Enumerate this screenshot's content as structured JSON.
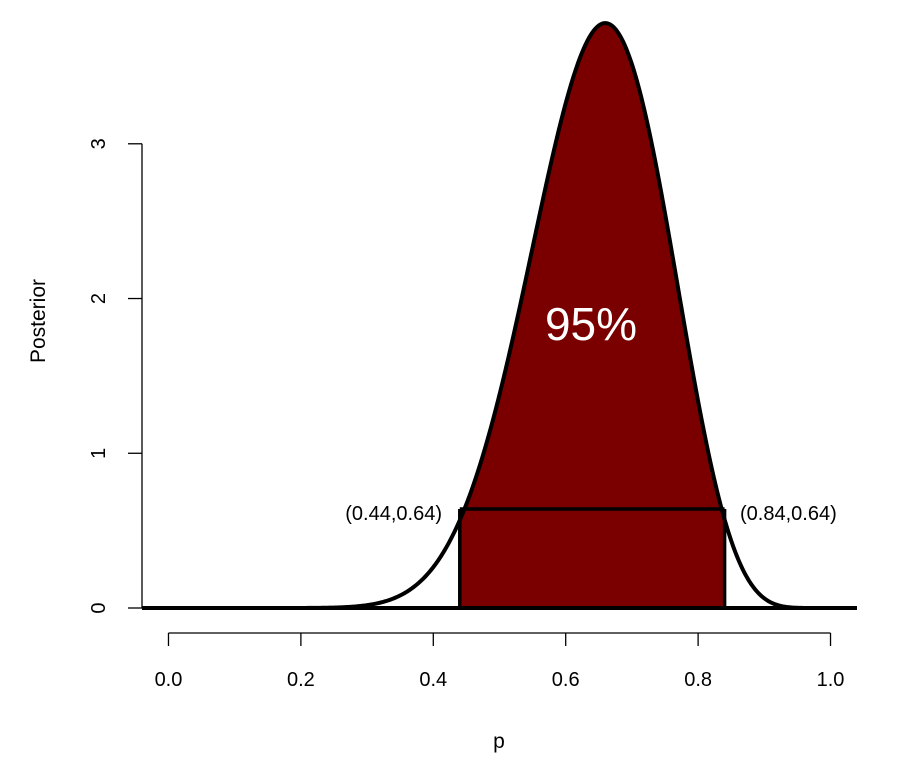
{
  "chart_data": {
    "type": "area",
    "title": "",
    "xlabel": "p",
    "ylabel": "Posterior",
    "xlim": [
      -0.04,
      1.04
    ],
    "ylim": [
      0,
      3.8
    ],
    "x_ticks": [
      "0.0",
      "0.2",
      "0.4",
      "0.6",
      "0.8",
      "1.0"
    ],
    "x_tick_values": [
      0.0,
      0.2,
      0.4,
      0.6,
      0.8,
      1.0
    ],
    "y_ticks": [
      "0",
      "1",
      "2",
      "3"
    ],
    "y_tick_values": [
      0,
      1,
      2,
      3
    ],
    "curve": {
      "distribution": "beta",
      "alpha": 13.8,
      "beta": 7.6,
      "mode": 0.66,
      "peak_density": 3.78
    },
    "hpd_interval": {
      "lower": 0.44,
      "upper": 0.84,
      "density_level": 0.64,
      "coverage_label": "95%",
      "lower_label": "(0.44,0.64)",
      "upper_label": "(0.84,0.64)",
      "fill_color": "#7a0000"
    },
    "grid": false,
    "line_color": "#000000"
  }
}
